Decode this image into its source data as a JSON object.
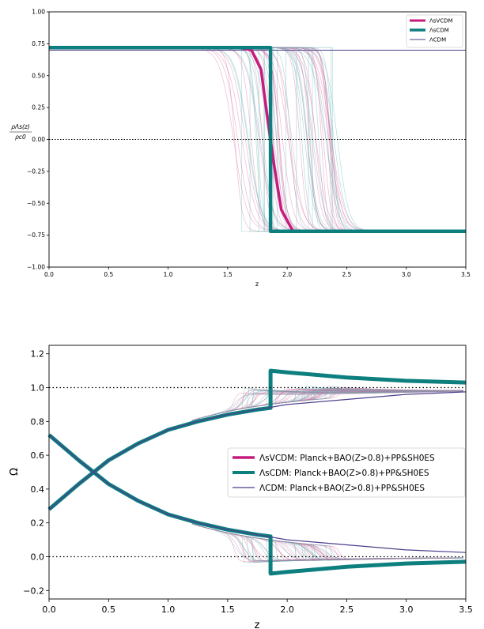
{
  "colors": {
    "lsvcdm": "#c51b7d",
    "lscdm": "#0e7f7f",
    "lcdm": "#4b3f8c",
    "samples_pink": "#d6679f",
    "samples_teal": "#5fb0b0"
  },
  "chart_data": [
    {
      "type": "line",
      "xlabel": "z",
      "ylabel": "ρ_Λs(z) / ρ_c0",
      "ylabel_num": "ρΛs(z)",
      "ylabel_den": "ρc0",
      "xlim": [
        0.0,
        3.5
      ],
      "ylim": [
        -1.0,
        1.0
      ],
      "x_ticks": [
        "0.0",
        "0.5",
        "1.0",
        "1.5",
        "2.0",
        "2.5",
        "3.0",
        "3.5"
      ],
      "y_ticks": [
        "−1.00",
        "−0.75",
        "−0.50",
        "−0.25",
        "0.00",
        "0.25",
        "0.50",
        "0.75",
        "1.00"
      ],
      "legend_position": "top-right",
      "legend": [
        "ΛsVCDM",
        "ΛsCDM",
        "ΛCDM"
      ],
      "reference_lines": [
        0.0
      ],
      "series": [
        {
          "name": "ΛsVCDM",
          "x": [
            0.0,
            1.6,
            1.7,
            1.78,
            1.83,
            1.86,
            1.89,
            1.95,
            2.05,
            3.5
          ],
          "y": [
            0.72,
            0.72,
            0.7,
            0.55,
            0.2,
            0.0,
            -0.2,
            -0.55,
            -0.72,
            -0.72
          ]
        },
        {
          "name": "ΛsCDM",
          "x": [
            0.0,
            1.86,
            1.86,
            3.5
          ],
          "y": [
            0.72,
            0.72,
            -0.72,
            -0.72
          ]
        },
        {
          "name": "ΛCDM",
          "x": [
            0.0,
            3.5
          ],
          "y": [
            0.7,
            0.7
          ]
        }
      ],
      "sample_band": {
        "transition_z_range": [
          1.45,
          2.55
        ],
        "upper": 0.72,
        "lower": -0.72
      }
    },
    {
      "type": "line",
      "xlabel": "z",
      "ylabel": "Ω",
      "xlim": [
        0.0,
        3.5
      ],
      "ylim": [
        -0.25,
        1.25
      ],
      "x_ticks": [
        "0.0",
        "0.5",
        "1.0",
        "1.5",
        "2.0",
        "2.5",
        "3.0",
        "3.5"
      ],
      "y_ticks": [
        "−0.2",
        "0.0",
        "0.2",
        "0.4",
        "0.6",
        "0.8",
        "1.0",
        "1.2"
      ],
      "legend_position": "center-right",
      "legend": [
        "ΛsVCDM: Planck+BAO(Z>0.8)+PP&SH0ES",
        "ΛsCDM: Planck+BAO(Z>0.8)+PP&SH0ES",
        "ΛCDM: Planck+BAO(Z>0.8)+PP&SH0ES"
      ],
      "reference_lines": [
        0.0,
        1.0
      ],
      "series": [
        {
          "name": "ΛCDM Ωm",
          "x": [
            0,
            0.25,
            0.5,
            0.75,
            1.0,
            1.25,
            1.5,
            1.75,
            2.0,
            2.5,
            3.0,
            3.5
          ],
          "y": [
            0.28,
            0.43,
            0.57,
            0.67,
            0.75,
            0.8,
            0.84,
            0.87,
            0.9,
            0.93,
            0.96,
            0.975
          ]
        },
        {
          "name": "ΛCDM ΩΛ",
          "x": [
            0,
            0.25,
            0.5,
            0.75,
            1.0,
            1.25,
            1.5,
            1.75,
            2.0,
            2.5,
            3.0,
            3.5
          ],
          "y": [
            0.72,
            0.57,
            0.43,
            0.33,
            0.25,
            0.2,
            0.16,
            0.13,
            0.1,
            0.07,
            0.04,
            0.025
          ]
        },
        {
          "name": "ΛsCDM Ωm",
          "x": [
            0,
            0.25,
            0.5,
            0.75,
            1.0,
            1.25,
            1.5,
            1.75,
            1.86,
            1.86,
            2.0,
            2.5,
            3.0,
            3.5
          ],
          "y": [
            0.28,
            0.43,
            0.57,
            0.67,
            0.75,
            0.8,
            0.84,
            0.87,
            0.88,
            1.1,
            1.09,
            1.06,
            1.04,
            1.03
          ]
        },
        {
          "name": "ΛsCDM ΩΛ",
          "x": [
            0,
            0.25,
            0.5,
            0.75,
            1.0,
            1.25,
            1.5,
            1.75,
            1.86,
            1.86,
            2.0,
            2.5,
            3.0,
            3.5
          ],
          "y": [
            0.72,
            0.57,
            0.43,
            0.33,
            0.25,
            0.2,
            0.16,
            0.13,
            0.12,
            -0.1,
            -0.09,
            -0.06,
            -0.04,
            -0.03
          ]
        }
      ],
      "sample_band": {
        "transition_z_range": [
          1.55,
          2.45
        ]
      }
    }
  ]
}
